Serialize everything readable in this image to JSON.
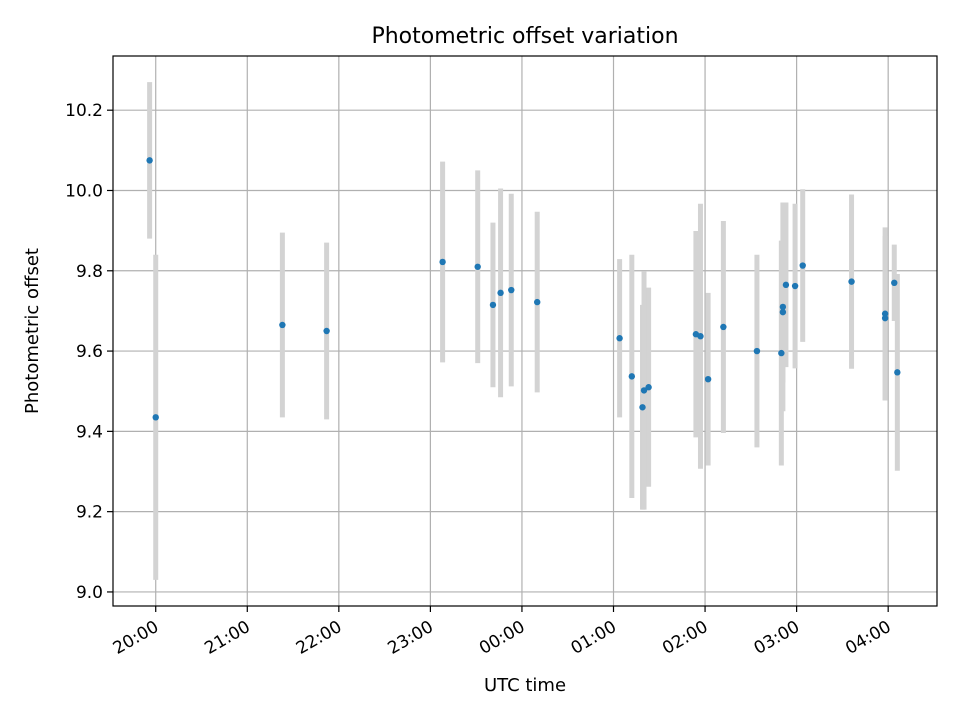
{
  "chart_data": {
    "type": "scatter",
    "title": "Photometric offset variation",
    "xlabel": "UTC time",
    "ylabel": "Photometric offset",
    "x_ticks": [
      "20:00",
      "21:00",
      "22:00",
      "23:00",
      "00:00",
      "01:00",
      "02:00",
      "03:00",
      "04:00"
    ],
    "y_ticks": [
      "9.0",
      "9.2",
      "9.4",
      "9.6",
      "9.8",
      "10.0",
      "10.2"
    ],
    "xlim": [
      "19:32",
      "04:32"
    ],
    "ylim": [
      8.965,
      10.335
    ],
    "grid": true,
    "colors": {
      "point": "#1f77b4",
      "error_bar": "#d3d3d3",
      "grid": "#b0b0b0"
    },
    "points": [
      {
        "time": "19:56",
        "y": 10.075,
        "yerr": 0.195
      },
      {
        "time": "20:00",
        "y": 9.435,
        "yerr": 0.405
      },
      {
        "time": "21:23",
        "y": 9.665,
        "yerr": 0.23
      },
      {
        "time": "21:52",
        "y": 9.65,
        "yerr": 0.22
      },
      {
        "time": "23:08",
        "y": 9.822,
        "yerr": 0.25
      },
      {
        "time": "23:31",
        "y": 9.81,
        "yerr": 0.24
      },
      {
        "time": "23:41",
        "y": 9.715,
        "yerr": 0.205
      },
      {
        "time": "23:46",
        "y": 9.745,
        "yerr": 0.26
      },
      {
        "time": "23:53",
        "y": 9.752,
        "yerr": 0.24
      },
      {
        "time": "00:10",
        "y": 9.722,
        "yerr": 0.225
      },
      {
        "time": "01:04",
        "y": 9.632,
        "yerr": 0.197
      },
      {
        "time": "01:12",
        "y": 9.537,
        "yerr": 0.303
      },
      {
        "time": "01:19",
        "y": 9.46,
        "yerr": 0.255
      },
      {
        "time": "01:20",
        "y": 9.502,
        "yerr": 0.297
      },
      {
        "time": "01:23",
        "y": 9.51,
        "yerr": 0.248
      },
      {
        "time": "01:54",
        "y": 9.642,
        "yerr": 0.257
      },
      {
        "time": "01:57",
        "y": 9.637,
        "yerr": 0.33
      },
      {
        "time": "02:02",
        "y": 9.53,
        "yerr": 0.215
      },
      {
        "time": "02:12",
        "y": 9.66,
        "yerr": 0.264
      },
      {
        "time": "02:34",
        "y": 9.6,
        "yerr": 0.24
      },
      {
        "time": "02:50",
        "y": 9.595,
        "yerr": 0.28
      },
      {
        "time": "02:51",
        "y": 9.697,
        "yerr": 0.175
      },
      {
        "time": "02:51",
        "y": 9.71,
        "yerr": 0.26
      },
      {
        "time": "02:53",
        "y": 9.765,
        "yerr": 0.205
      },
      {
        "time": "02:59",
        "y": 9.762,
        "yerr": 0.205
      },
      {
        "time": "03:04",
        "y": 9.813,
        "yerr": 0.19
      },
      {
        "time": "03:36",
        "y": 9.773,
        "yerr": 0.217
      },
      {
        "time": "03:58",
        "y": 9.693,
        "yerr": 0.215
      },
      {
        "time": "03:58",
        "y": 9.682,
        "yerr": 0.205
      },
      {
        "time": "04:04",
        "y": 9.77,
        "yerr": 0.095
      },
      {
        "time": "04:06",
        "y": 9.547,
        "yerr": 0.245
      }
    ]
  }
}
